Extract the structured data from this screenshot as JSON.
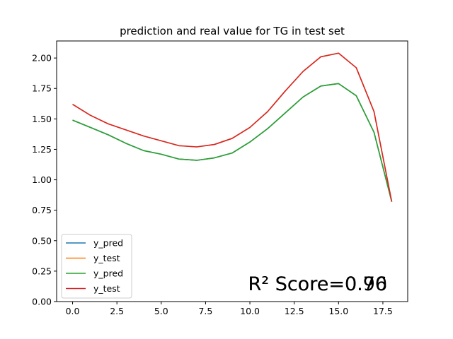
{
  "chart_data": {
    "type": "line",
    "title": "prediction and real value for TG in test set",
    "xlabel": "",
    "ylabel": "",
    "xlim": [
      -0.9,
      18.9
    ],
    "ylim": [
      0.0,
      2.14
    ],
    "xticks": [
      0.0,
      2.5,
      5.0,
      7.5,
      10.0,
      12.5,
      15.0,
      17.5
    ],
    "xtick_labels": [
      "0.0",
      "2.5",
      "5.0",
      "7.5",
      "10.0",
      "12.5",
      "15.0",
      "17.5"
    ],
    "yticks": [
      0.0,
      0.25,
      0.5,
      0.75,
      1.0,
      1.25,
      1.5,
      1.75,
      2.0
    ],
    "ytick_labels": [
      "0.00",
      "0.25",
      "0.50",
      "0.75",
      "1.00",
      "1.25",
      "1.50",
      "1.75",
      "2.00"
    ],
    "grid": false,
    "legend_position": "lower-left",
    "x": [
      0,
      1,
      2,
      3,
      4,
      5,
      6,
      7,
      8,
      9,
      10,
      11,
      12,
      13,
      14,
      15,
      16,
      17,
      18
    ],
    "series": [
      {
        "name": "y_pred",
        "color": "#1f77b4",
        "values": [
          1.49,
          1.43,
          1.37,
          1.3,
          1.24,
          1.21,
          1.17,
          1.16,
          1.18,
          1.22,
          1.31,
          1.42,
          1.55,
          1.68,
          1.77,
          1.79,
          1.69,
          1.39,
          0.82
        ]
      },
      {
        "name": "y_test",
        "color": "#ff7f0e",
        "values": [
          1.62,
          1.53,
          1.46,
          1.41,
          1.36,
          1.32,
          1.28,
          1.27,
          1.29,
          1.34,
          1.43,
          1.56,
          1.73,
          1.89,
          2.01,
          2.04,
          1.92,
          1.56,
          0.82
        ]
      },
      {
        "name": "y_pred",
        "color": "#2ca02c",
        "values": [
          1.49,
          1.43,
          1.37,
          1.3,
          1.24,
          1.21,
          1.17,
          1.16,
          1.18,
          1.22,
          1.31,
          1.42,
          1.55,
          1.68,
          1.77,
          1.79,
          1.69,
          1.39,
          0.82
        ]
      },
      {
        "name": "y_test",
        "color": "#d62728",
        "values": [
          1.62,
          1.53,
          1.46,
          1.41,
          1.36,
          1.32,
          1.28,
          1.27,
          1.29,
          1.34,
          1.43,
          1.56,
          1.73,
          1.89,
          2.01,
          2.04,
          1.92,
          1.56,
          0.82
        ]
      }
    ],
    "annotations": [
      {
        "text": "R² Score=0.70",
        "x": 9.9,
        "y": 0.15
      },
      {
        "text": "R² Score=0.96",
        "x": 9.9,
        "y": 0.15
      }
    ]
  }
}
